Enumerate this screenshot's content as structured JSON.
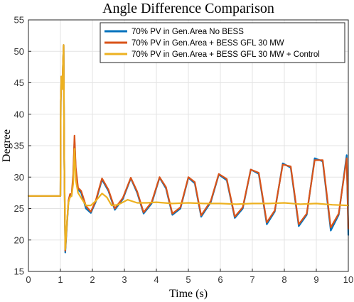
{
  "chart_data": {
    "type": "line",
    "title": "Angle Difference Comparison",
    "xlabel": "Time (s)",
    "ylabel": "Degree",
    "xlim": [
      0,
      10
    ],
    "ylim": [
      15,
      55
    ],
    "xticks": [
      0,
      1,
      2,
      3,
      4,
      5,
      6,
      7,
      8,
      9,
      10
    ],
    "yticks": [
      15,
      20,
      25,
      30,
      35,
      40,
      45,
      50,
      55
    ],
    "grid": true,
    "legend_position": "top-right",
    "series": [
      {
        "name": "70% PV in Gen.Area No BESS",
        "color": "#0072BD",
        "x": [
          0,
          0.5,
          1.0,
          1.01,
          1.03,
          1.06,
          1.08,
          1.1,
          1.12,
          1.15,
          1.2,
          1.25,
          1.3,
          1.35,
          1.4,
          1.44,
          1.48,
          1.55,
          1.65,
          1.8,
          1.95,
          2.1,
          2.3,
          2.5,
          2.7,
          2.95,
          3.2,
          3.4,
          3.6,
          3.85,
          4.1,
          4.3,
          4.5,
          4.75,
          5.0,
          5.2,
          5.4,
          5.7,
          5.95,
          6.2,
          6.45,
          6.7,
          6.95,
          7.2,
          7.45,
          7.7,
          7.95,
          8.2,
          8.45,
          8.7,
          8.95,
          9.2,
          9.45,
          9.7,
          9.95,
          10.0
        ],
        "values": [
          27.0,
          27.0,
          27.0,
          42.0,
          46.0,
          44.0,
          48.0,
          51.0,
          33.0,
          18.0,
          22.0,
          26.0,
          27.0,
          27.0,
          30.0,
          36.0,
          31.0,
          28.0,
          27.5,
          25.0,
          24.3,
          26.0,
          29.6,
          27.8,
          24.8,
          26.5,
          29.8,
          27.5,
          24.2,
          25.8,
          29.9,
          28.2,
          24.0,
          25.0,
          29.9,
          29.0,
          23.7,
          26.0,
          30.4,
          29.5,
          23.5,
          25.0,
          31.2,
          30.5,
          22.5,
          24.5,
          32.2,
          31.5,
          22.2,
          24.0,
          33.0,
          32.5,
          21.5,
          24.0,
          33.5,
          20.8
        ]
      },
      {
        "name": "70% PV in Gen.Area + BESS GFL 30 MW",
        "color": "#D95319",
        "x": [
          0,
          0.5,
          1.0,
          1.01,
          1.03,
          1.06,
          1.08,
          1.1,
          1.12,
          1.15,
          1.2,
          1.25,
          1.3,
          1.35,
          1.4,
          1.44,
          1.48,
          1.55,
          1.65,
          1.8,
          1.95,
          2.1,
          2.3,
          2.5,
          2.7,
          2.95,
          3.2,
          3.4,
          3.6,
          3.85,
          4.1,
          4.3,
          4.5,
          4.75,
          5.0,
          5.2,
          5.4,
          5.7,
          5.95,
          6.2,
          6.45,
          6.7,
          6.95,
          7.2,
          7.45,
          7.7,
          7.95,
          8.2,
          8.45,
          8.7,
          8.95,
          9.2,
          9.45,
          9.7,
          9.95,
          10.0
        ],
        "values": [
          27.0,
          27.0,
          27.0,
          42.0,
          46.0,
          44.0,
          48.0,
          51.0,
          33.0,
          18.3,
          22.3,
          26.3,
          27.3,
          27.3,
          30.5,
          36.6,
          31.5,
          28.3,
          27.8,
          25.4,
          24.5,
          26.2,
          29.8,
          28.0,
          25.0,
          26.7,
          29.9,
          27.7,
          24.4,
          26.0,
          30.0,
          28.4,
          24.2,
          25.2,
          30.0,
          29.2,
          23.9,
          26.2,
          30.5,
          29.7,
          23.7,
          25.2,
          31.2,
          30.7,
          22.8,
          24.7,
          32.0,
          31.7,
          22.5,
          24.2,
          32.7,
          32.7,
          22.0,
          24.2,
          33.0,
          21.8
        ]
      },
      {
        "name": "70% PV in Gen.Area + BESS GFL 30 MW + Control",
        "color": "#EDB120",
        "x": [
          0,
          0.5,
          1.0,
          1.01,
          1.03,
          1.06,
          1.08,
          1.1,
          1.12,
          1.15,
          1.2,
          1.25,
          1.3,
          1.35,
          1.4,
          1.44,
          1.48,
          1.55,
          1.65,
          1.8,
          1.95,
          2.1,
          2.3,
          2.45,
          2.6,
          2.8,
          3.1,
          3.4,
          3.7,
          4.0,
          4.5,
          5.0,
          5.5,
          6.0,
          6.5,
          7.0,
          7.5,
          8.0,
          8.5,
          9.0,
          9.5,
          10.0
        ],
        "values": [
          27.0,
          27.0,
          27.0,
          42.0,
          46.0,
          44.0,
          48.0,
          51.0,
          33.0,
          18.5,
          22.5,
          26.0,
          26.8,
          27.0,
          29.0,
          34.5,
          29.5,
          27.5,
          26.7,
          25.5,
          25.5,
          26.2,
          27.4,
          26.8,
          25.5,
          25.6,
          26.4,
          25.9,
          25.9,
          26.0,
          25.8,
          25.9,
          25.8,
          25.8,
          25.7,
          25.8,
          25.8,
          25.9,
          25.7,
          25.8,
          25.6,
          25.5
        ]
      }
    ]
  }
}
